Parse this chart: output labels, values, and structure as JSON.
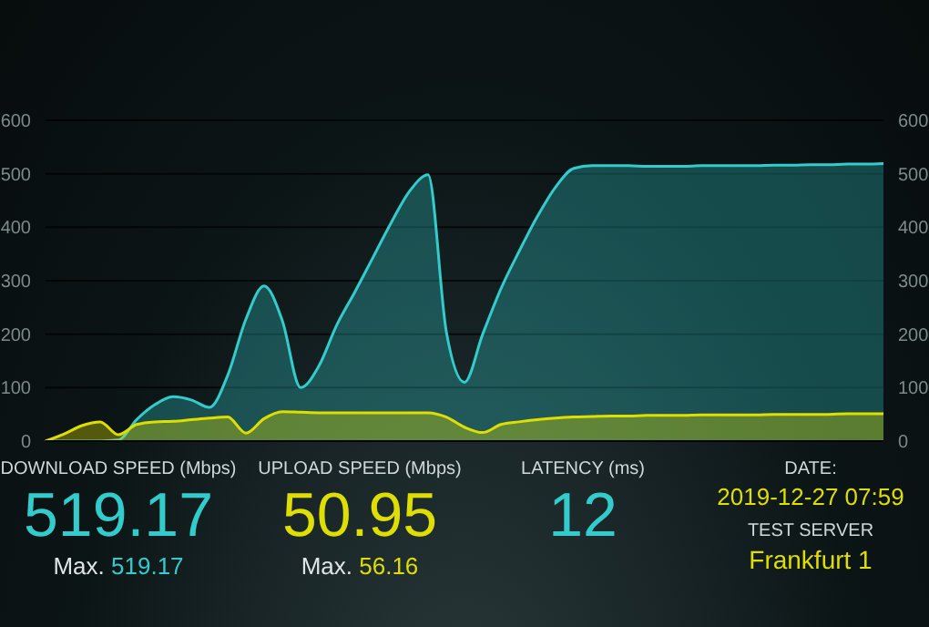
{
  "chart_data": {
    "type": "area",
    "categories": [
      null,
      null,
      null,
      null,
      null,
      null,
      null,
      null,
      null,
      null,
      null,
      null,
      null,
      null,
      null,
      null,
      null,
      null,
      null,
      null,
      null,
      null,
      null,
      null,
      null,
      null,
      null,
      null,
      null,
      null,
      null,
      null,
      null,
      null,
      null,
      null,
      null,
      null,
      null,
      null,
      null,
      null,
      null,
      null,
      null,
      null,
      null
    ],
    "series": [
      {
        "color": "#33cccc",
        "values": [
          0,
          0,
          0,
          0,
          2,
          40,
          68,
          83,
          77,
          63,
          123,
          228,
          290,
          225,
          100,
          140,
          218,
          280,
          345,
          410,
          468,
          498,
          205,
          110,
          200,
          285,
          355,
          420,
          475,
          510,
          515,
          515,
          515,
          514,
          514,
          514,
          515,
          515,
          515,
          515,
          516,
          516,
          517,
          517,
          518,
          518,
          519
        ]
      },
      {
        "color": "#dede00",
        "values": [
          0,
          13,
          29,
          36,
          12,
          31,
          36,
          37,
          40,
          43,
          45,
          15,
          42,
          55,
          54,
          53,
          53,
          53,
          53,
          53,
          53,
          53,
          45,
          26,
          16,
          31,
          36,
          40,
          43,
          45,
          46,
          47,
          47,
          48,
          48,
          48,
          49,
          49,
          49,
          49,
          50,
          50,
          50,
          50,
          51,
          51,
          51
        ]
      }
    ],
    "ylim": [
      0,
      600
    ],
    "yticks": [
      0,
      100,
      200,
      300,
      400,
      500,
      600
    ],
    "y2lim": [
      0,
      600
    ],
    "y2ticks": [
      0,
      100,
      200,
      300,
      400,
      500,
      600
    ],
    "grid": "y",
    "tick_labels": "y",
    "annotations": [
      "DOWNLOAD SPEED (Mbps)",
      "519.17",
      "Max. 519.17",
      "UPLOAD SPEED (Mbps)",
      "50.95",
      "Max. 56.16",
      "LATENCY (ms)",
      "12",
      "DATE:",
      "2019-12-27 07:59",
      "TEST SERVER",
      "Frankfurt 1"
    ]
  }
}
